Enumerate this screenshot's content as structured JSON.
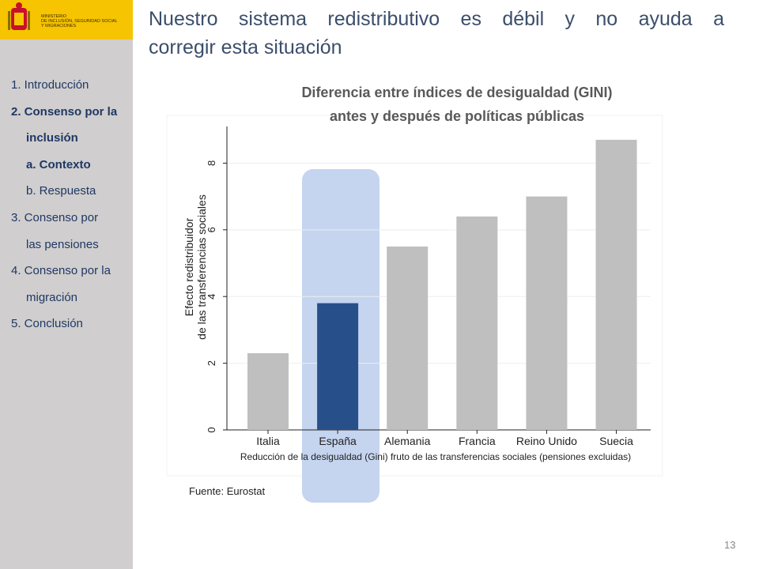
{
  "logo": {
    "lines": [
      "MINISTERIO",
      "DE INCLUSIÓN, SEGURIDAD SOCIAL",
      "Y MIGRACIONES"
    ]
  },
  "title_lines": [
    "Nuestro sistema redistributivo es débil y no ayuda a",
    "corregir esta situación"
  ],
  "nav": [
    "1. Introducción",
    "2. Consenso por la",
    "inclusión",
    "a. Contexto",
    "b. Respuesta",
    "3. Consenso por",
    "las pensiones",
    "4. Consenso por la",
    "migración",
    "5. Conclusión"
  ],
  "source": "Fuente: Eurostat",
  "page_number": "13",
  "chart_data": {
    "type": "bar",
    "title_lines": [
      "Diferencia entre índices de desigualdad (GINI)",
      "antes y después de políticas públicas"
    ],
    "y_label_lines": [
      "Efecto redistribuidor",
      "de las transferencias sociales"
    ],
    "x_label": "Reducción de la desigualdad (Gini) fruto de las transferencias sociales (pensiones excluidas)",
    "categories": [
      "Italia",
      "España",
      "Alemania",
      "Francia",
      "Reino Unido",
      "Suecia"
    ],
    "values": [
      2.3,
      3.8,
      5.5,
      6.4,
      7.0,
      8.7
    ],
    "colors": [
      "#bfbfbf",
      "#27508a",
      "#bfbfbf",
      "#bfbfbf",
      "#bfbfbf",
      "#bfbfbf"
    ],
    "ylim": [
      0,
      9.1
    ],
    "yticks": [
      0,
      2,
      4,
      6,
      8
    ],
    "grid": true
  }
}
